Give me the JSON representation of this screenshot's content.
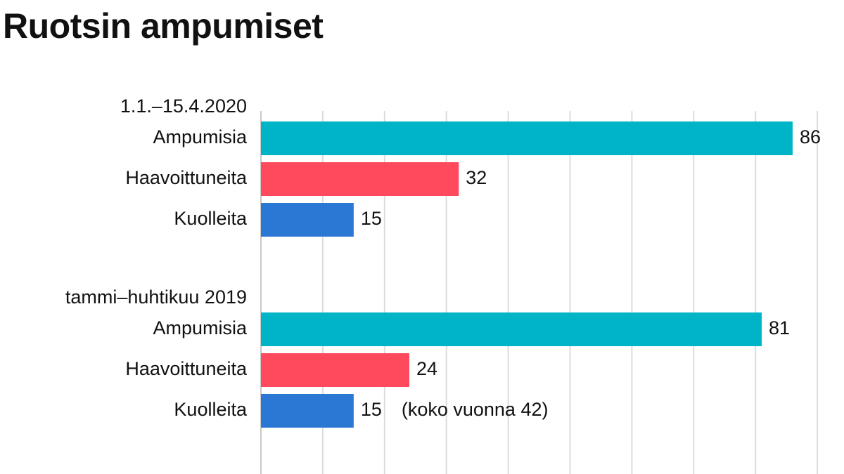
{
  "title": "Ruotsin ampumiset",
  "chart_data": {
    "type": "bar",
    "orientation": "horizontal",
    "title": "Ruotsin ampumiset",
    "xlim": [
      0,
      90
    ],
    "x_gridline_step": 10,
    "grid": true,
    "axis_tick_labels": false,
    "groups": [
      {
        "label": "1.1.–15.4.2020",
        "bars": [
          {
            "category": "Ampumisia",
            "value": 86,
            "value_label": "86",
            "color": "#00b4c8"
          },
          {
            "category": "Haavoittuneita",
            "value": 32,
            "value_label": "32",
            "color": "#ff4a5e"
          },
          {
            "category": "Kuolleita",
            "value": 15,
            "value_label": "15",
            "color": "#2b77d4"
          }
        ]
      },
      {
        "label": "tammi–huhtikuu 2019",
        "bars": [
          {
            "category": "Ampumisia",
            "value": 81,
            "value_label": "81",
            "color": "#00b4c8"
          },
          {
            "category": "Haavoittuneita",
            "value": 24,
            "value_label": "24",
            "color": "#ff4a5e"
          },
          {
            "category": "Kuolleita",
            "value": 15,
            "value_label": "15",
            "color": "#2b77d4",
            "annotation": "(koko vuonna 42)"
          }
        ]
      }
    ]
  }
}
